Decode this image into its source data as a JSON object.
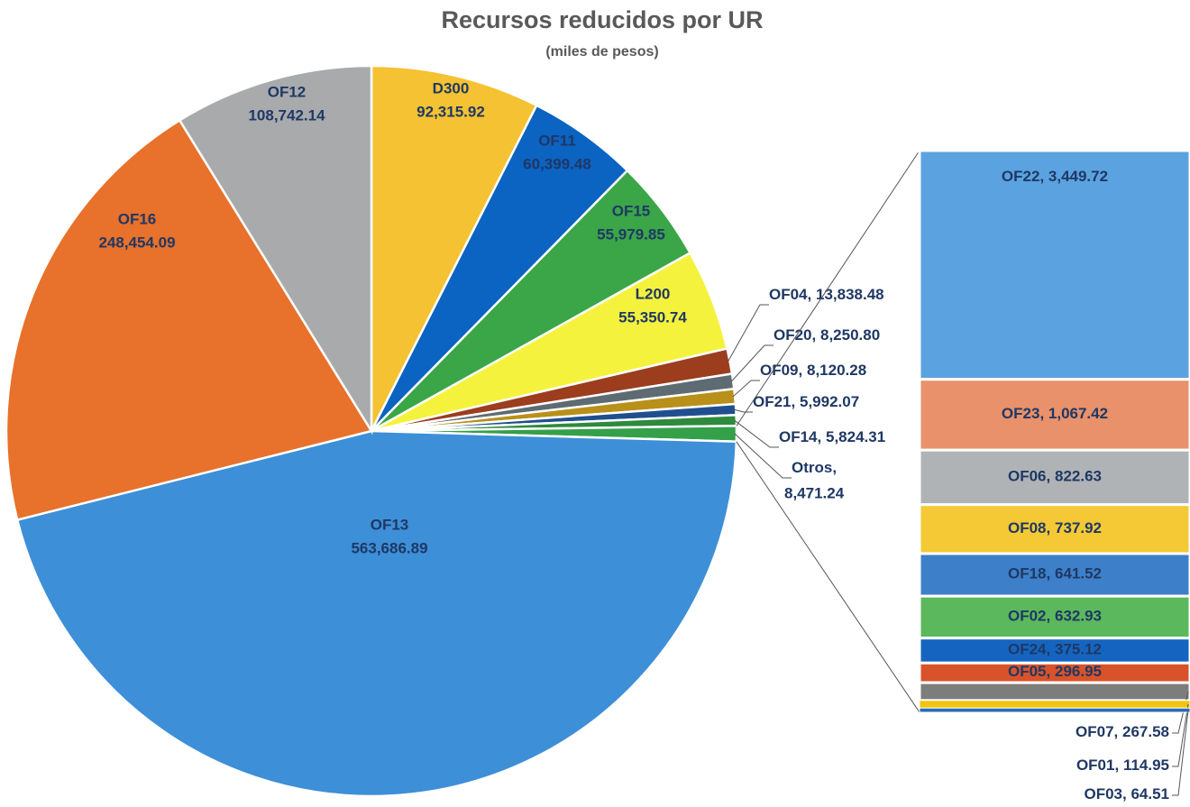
{
  "chart_data": [
    {
      "type": "pie",
      "title": "Recursos reducidos por UR",
      "subtitle": "(miles de pesos)",
      "categories": [
        "D300",
        "OF11",
        "OF15",
        "L200",
        "OF04",
        "OF20",
        "OF09",
        "OF21",
        "OF14",
        "Otros",
        "OF13",
        "OF16",
        "OF12"
      ],
      "values": [
        92315.92,
        60399.48,
        55979.85,
        55350.74,
        13838.48,
        8250.8,
        8120.28,
        5992.07,
        5824.31,
        8471.24,
        563686.89,
        248454.09,
        108742.14
      ],
      "value_labels": [
        "92,315.92",
        "60,399.48",
        "55,979.85",
        "55,350.74",
        "13,838.48",
        "8,250.80",
        "8,120.28",
        "5,992.07",
        "5,824.31",
        "8,471.24",
        "563,686.89",
        "248,454.09",
        "108,742.14"
      ],
      "colors": [
        "#f4c232",
        "#0b63c2",
        "#3aa648",
        "#f5f23e",
        "#9c3d1e",
        "#5f6b73",
        "#b8901a",
        "#1f4f8f",
        "#2e8a3c",
        "#34a04a",
        "#3d8fd8",
        "#e8712b",
        "#a8aaac"
      ]
    },
    {
      "type": "bar",
      "categories": [
        "OF22",
        "OF23",
        "OF06",
        "OF08",
        "OF18",
        "OF02",
        "OF24",
        "OF05",
        "OF07",
        "OF01",
        "OF03"
      ],
      "values": [
        3449.72,
        1067.42,
        822.63,
        737.92,
        641.52,
        632.93,
        375.12,
        296.95,
        267.58,
        114.95,
        64.51
      ],
      "value_labels": [
        "3,449.72",
        "1,067.42",
        "822.63",
        "737.92",
        "641.52",
        "632.93",
        "375.12",
        "296.95",
        "267.58",
        "114.95",
        "64.51"
      ],
      "colors": [
        "#5ba3e0",
        "#e8916a",
        "#b0b3b6",
        "#f4c935",
        "#3d80c9",
        "#5cb85c",
        "#1565c0",
        "#d9532a",
        "#7d7d7d",
        "#f1c40f",
        "#2b6cb0"
      ]
    }
  ]
}
